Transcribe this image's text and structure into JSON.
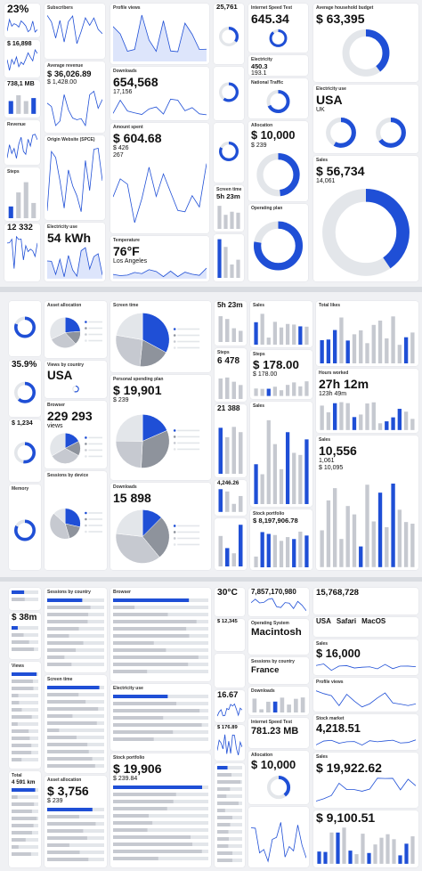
{
  "sections": [
    {
      "cards": [
        {
          "values": [
            "23%"
          ]
        },
        {
          "values": [
            "$ 16,898"
          ]
        },
        {
          "values": [
            "738,1 MB"
          ]
        },
        {
          "title": "Revenue"
        },
        {
          "title": "Steps"
        },
        {
          "values": [
            "12 332"
          ]
        },
        {
          "title": "Subscribers"
        },
        {
          "title": "Average revenue",
          "values": [
            "$ 36,026.89",
            "$ 1,428.00"
          ]
        },
        {
          "title": "Origin Website (SPCE)"
        },
        {
          "title": "Electricity use",
          "values": [
            "54 kWh"
          ]
        },
        {
          "title": "Profile views"
        },
        {
          "title": "Downloads",
          "values": [
            "654,568",
            "17,156"
          ]
        },
        {
          "title": "Amount spent",
          "values": [
            "$ 604.68",
            "$ 426",
            "267"
          ]
        },
        {
          "title": "Temperature",
          "values": [
            "76°F",
            "Los Angeles"
          ]
        },
        {
          "values": [
            "25,761"
          ]
        },
        {
          "title": "Screen time",
          "values": [
            "5h 23m"
          ]
        },
        {
          "title": "Internet Speed Test",
          "values": [
            "645.34"
          ]
        },
        {
          "title": "Electricity",
          "values": [
            "450.3",
            "193.1"
          ]
        },
        {
          "title": "National Traffic"
        },
        {
          "title": "Allocation",
          "values": [
            "$ 10,000",
            "$ 239"
          ]
        },
        {
          "title": "Operating plan"
        },
        {
          "title": "Average household budget",
          "values": [
            "$ 63,395"
          ]
        },
        {
          "title": "Electricity use",
          "values": [
            "USA",
            "UK"
          ]
        },
        {
          "title": "Sales",
          "values": [
            "$ 56,734",
            "14,061"
          ]
        }
      ]
    },
    {
      "cards": [
        {
          "values": [
            "35.9%"
          ]
        },
        {
          "values": [
            "$ 1,234"
          ]
        },
        {
          "title": "Memory"
        },
        {
          "title": "Asset allocation"
        },
        {
          "title": "Views by country",
          "values": [
            "USA"
          ]
        },
        {
          "title": "Browser",
          "values": [
            "229 293",
            "views"
          ]
        },
        {
          "title": "Sessions by device"
        },
        {
          "title": "Screen time"
        },
        {
          "title": "Personal spending plan",
          "values": [
            "$ 19,901",
            "$ 239"
          ]
        },
        {
          "title": "Downloads",
          "values": [
            "15 898"
          ]
        },
        {
          "values": [
            "5h 23m"
          ]
        },
        {
          "title": "Steps",
          "values": [
            "6 478"
          ]
        },
        {
          "values": [
            "21 388"
          ]
        },
        {
          "values": [
            "4,246.26"
          ]
        },
        {
          "title": "Sales"
        },
        {
          "title": "Steps",
          "values": [
            "$ 178.00",
            "$ 178.00"
          ]
        },
        {
          "title": "Sales"
        },
        {
          "title": "Stock portfolio",
          "values": [
            "$ 8,197,906.78"
          ]
        },
        {
          "title": "Total likes"
        },
        {
          "title": "Hours worked",
          "values": [
            "27h 12m",
            "123h 49m"
          ]
        },
        {
          "title": "Sales",
          "values": [
            "10,556",
            "1,061",
            "$ 10,095"
          ]
        }
      ]
    },
    {
      "cards": [
        {
          "values": [
            "$ 38m"
          ]
        },
        {
          "title": "Views"
        },
        {
          "title": "Total",
          "values": [
            "4 591 km"
          ]
        },
        {
          "title": "Sessions by country"
        },
        {
          "title": "Screen time"
        },
        {
          "title": "Asset allocation",
          "values": [
            "$ 3,756",
            "$ 239"
          ]
        },
        {
          "title": "Browser"
        },
        {
          "title": "Electricity use"
        },
        {
          "title": "Stock portfolio",
          "values": [
            "$ 19,906",
            "$ 239.84"
          ]
        },
        {
          "values": [
            "30°C"
          ]
        },
        {
          "values": [
            "$ 12,345"
          ]
        },
        {
          "values": [
            "16.67"
          ]
        },
        {
          "values": [
            "$ 176.89"
          ]
        },
        {
          "values": [
            "7,857,170,980"
          ]
        },
        {
          "title": "Operating System",
          "values": [
            "Macintosh"
          ]
        },
        {
          "title": "Sessions by country",
          "values": [
            "France"
          ]
        },
        {
          "title": "Downloads"
        },
        {
          "title": "Internet Speed Test",
          "values": [
            "781.23 MB"
          ]
        },
        {
          "title": "Allocation",
          "values": [
            "$ 10,000"
          ]
        },
        {
          "values": [
            "15,768,728"
          ]
        },
        {
          "values": [
            "USA",
            "Safari",
            "MacOS"
          ]
        },
        {
          "title": "Sales",
          "values": [
            "$ 16,000"
          ]
        },
        {
          "title": "Profile views"
        },
        {
          "title": "Stock market",
          "values": [
            "4,218.51"
          ]
        },
        {
          "title": "Sales",
          "values": [
            "$ 19,922.62"
          ]
        },
        {
          "values": [
            "$ 9,100.51"
          ]
        }
      ]
    }
  ]
}
